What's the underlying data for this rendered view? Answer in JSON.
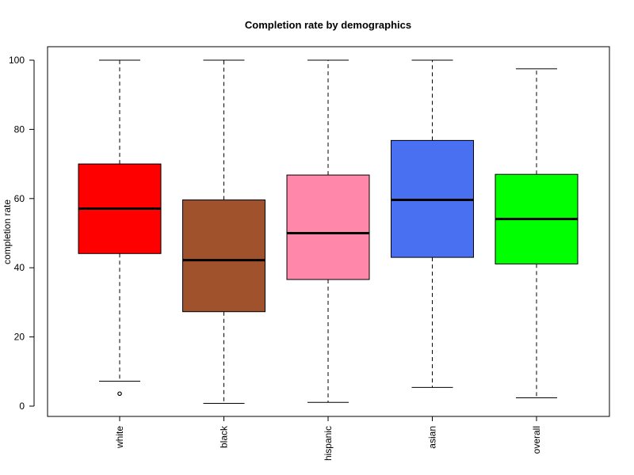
{
  "chart_data": {
    "type": "boxplot",
    "title": "Completion rate by demographics",
    "xlabel": "",
    "ylabel": "completion rate",
    "ylim": [
      -3,
      103
    ],
    "yticks": [
      0,
      20,
      40,
      60,
      80,
      100
    ],
    "grid": false,
    "legend": "none",
    "categories": [
      "white",
      "black",
      "hispanic",
      "asian",
      "overall"
    ],
    "series": [
      {
        "category": "white",
        "color": "#FF0000",
        "whisker_low": 7.2,
        "q1": 44.1,
        "median": 57.1,
        "q3": 70.0,
        "whisker_high": 100.0,
        "outliers": [
          3.6
        ]
      },
      {
        "category": "black",
        "color": "#A0522D",
        "whisker_low": 0.8,
        "q1": 27.3,
        "median": 42.2,
        "q3": 59.6,
        "whisker_high": 100.0,
        "outliers": []
      },
      {
        "category": "hispanic",
        "color": "#FF88AA",
        "whisker_low": 1.1,
        "q1": 36.6,
        "median": 50.0,
        "q3": 66.8,
        "whisker_high": 100.0,
        "outliers": []
      },
      {
        "category": "asian",
        "color": "#4870F0",
        "whisker_low": 5.4,
        "q1": 43.0,
        "median": 59.6,
        "q3": 76.8,
        "whisker_high": 100.0,
        "outliers": []
      },
      {
        "category": "overall",
        "color": "#00FF00",
        "whisker_low": 2.4,
        "q1": 41.1,
        "median": 54.1,
        "q3": 67.0,
        "whisker_high": 97.5,
        "outliers": []
      }
    ]
  }
}
